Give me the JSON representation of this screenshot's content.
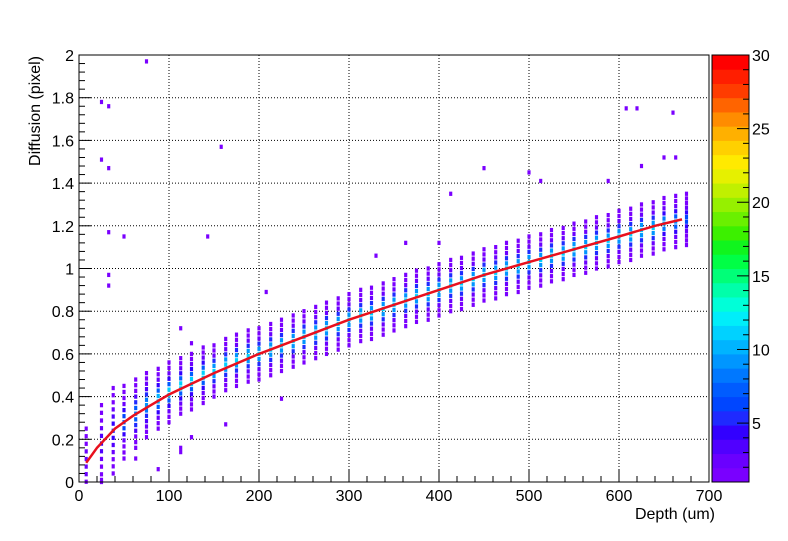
{
  "chart_data": {
    "type": "heatmap",
    "xlabel": "Depth (um)",
    "ylabel": "Diffusion (pixel)",
    "xlim": [
      0,
      700
    ],
    "ylim": [
      0,
      2
    ],
    "x_ticks": [
      "0",
      "100",
      "200",
      "300",
      "400",
      "500",
      "600",
      "700"
    ],
    "y_ticks": [
      "0",
      "0.2",
      "0.4",
      "0.6",
      "0.8",
      "1",
      "1.2",
      "1.4",
      "1.6",
      "1.8",
      "2"
    ],
    "grid": true,
    "colorbar": {
      "min": 1,
      "max": 30,
      "ticks": [
        "5",
        "10",
        "15",
        "20",
        "25",
        "30"
      ],
      "colors": [
        "#7a00ff",
        "#6a00ff",
        "#5000ff",
        "#3200ff",
        "#1f2aff",
        "#0046ff",
        "#005cff",
        "#0078ff",
        "#0096ff",
        "#00b4ff",
        "#00d2ff",
        "#00eefa",
        "#00ffd8",
        "#00ffaa",
        "#00ff78",
        "#00ff46",
        "#10f51e",
        "#3cf000",
        "#6af000",
        "#96f000",
        "#c0f000",
        "#e6f000",
        "#ffea00",
        "#ffd000",
        "#ffb000",
        "#ff8c00",
        "#ff6400",
        "#ff3c00",
        "#ff1e00",
        "#ff0000"
      ]
    },
    "fit_curve": {
      "color": "#e8101e",
      "points": [
        [
          8,
          0.09
        ],
        [
          20,
          0.16
        ],
        [
          40,
          0.25
        ],
        [
          60,
          0.31
        ],
        [
          80,
          0.36
        ],
        [
          100,
          0.41
        ],
        [
          120,
          0.45
        ],
        [
          150,
          0.51
        ],
        [
          200,
          0.6
        ],
        [
          250,
          0.68
        ],
        [
          300,
          0.76
        ],
        [
          350,
          0.83
        ],
        [
          400,
          0.9
        ],
        [
          450,
          0.97
        ],
        [
          500,
          1.03
        ],
        [
          550,
          1.09
        ],
        [
          600,
          1.15
        ],
        [
          640,
          1.2
        ],
        [
          670,
          1.23
        ]
      ]
    },
    "columns": [
      {
        "x": 8,
        "core": 0.09,
        "spread": 0.16,
        "n": 10,
        "peak": 2
      },
      {
        "x": 25,
        "core": 0.18,
        "spread": 0.18,
        "n": 11,
        "peak": 4
      },
      {
        "x": 38,
        "core": 0.24,
        "spread": 0.2,
        "n": 13,
        "peak": 5
      },
      {
        "x": 50,
        "core": 0.28,
        "spread": 0.17,
        "n": 13,
        "peak": 7
      },
      {
        "x": 63,
        "core": 0.32,
        "spread": 0.16,
        "n": 13,
        "peak": 8
      },
      {
        "x": 75,
        "core": 0.36,
        "spread": 0.15,
        "n": 13,
        "peak": 9
      },
      {
        "x": 88,
        "core": 0.39,
        "spread": 0.14,
        "n": 12,
        "peak": 10
      },
      {
        "x": 100,
        "core": 0.42,
        "spread": 0.14,
        "n": 12,
        "peak": 11
      },
      {
        "x": 113,
        "core": 0.45,
        "spread": 0.13,
        "n": 12,
        "peak": 11
      },
      {
        "x": 125,
        "core": 0.47,
        "spread": 0.13,
        "n": 12,
        "peak": 11
      },
      {
        "x": 138,
        "core": 0.5,
        "spread": 0.13,
        "n": 12,
        "peak": 11
      },
      {
        "x": 150,
        "core": 0.52,
        "spread": 0.12,
        "n": 11,
        "peak": 11
      },
      {
        "x": 163,
        "core": 0.55,
        "spread": 0.12,
        "n": 11,
        "peak": 11
      },
      {
        "x": 175,
        "core": 0.57,
        "spread": 0.12,
        "n": 11,
        "peak": 11
      },
      {
        "x": 188,
        "core": 0.59,
        "spread": 0.12,
        "n": 11,
        "peak": 11
      },
      {
        "x": 200,
        "core": 0.6,
        "spread": 0.12,
        "n": 11,
        "peak": 11
      },
      {
        "x": 213,
        "core": 0.62,
        "spread": 0.12,
        "n": 11,
        "peak": 11
      },
      {
        "x": 225,
        "core": 0.64,
        "spread": 0.12,
        "n": 11,
        "peak": 11
      },
      {
        "x": 238,
        "core": 0.66,
        "spread": 0.12,
        "n": 11,
        "peak": 11
      },
      {
        "x": 250,
        "core": 0.68,
        "spread": 0.12,
        "n": 11,
        "peak": 11
      },
      {
        "x": 263,
        "core": 0.7,
        "spread": 0.12,
        "n": 11,
        "peak": 11
      },
      {
        "x": 275,
        "core": 0.72,
        "spread": 0.12,
        "n": 11,
        "peak": 11
      },
      {
        "x": 288,
        "core": 0.74,
        "spread": 0.12,
        "n": 11,
        "peak": 11
      },
      {
        "x": 300,
        "core": 0.76,
        "spread": 0.12,
        "n": 11,
        "peak": 11
      },
      {
        "x": 313,
        "core": 0.78,
        "spread": 0.12,
        "n": 11,
        "peak": 11
      },
      {
        "x": 325,
        "core": 0.79,
        "spread": 0.12,
        "n": 11,
        "peak": 11
      },
      {
        "x": 338,
        "core": 0.81,
        "spread": 0.12,
        "n": 11,
        "peak": 11
      },
      {
        "x": 350,
        "core": 0.83,
        "spread": 0.12,
        "n": 11,
        "peak": 11
      },
      {
        "x": 363,
        "core": 0.85,
        "spread": 0.12,
        "n": 11,
        "peak": 11
      },
      {
        "x": 375,
        "core": 0.87,
        "spread": 0.12,
        "n": 11,
        "peak": 11
      },
      {
        "x": 388,
        "core": 0.88,
        "spread": 0.12,
        "n": 11,
        "peak": 11
      },
      {
        "x": 400,
        "core": 0.9,
        "spread": 0.12,
        "n": 11,
        "peak": 11
      },
      {
        "x": 413,
        "core": 0.92,
        "spread": 0.12,
        "n": 11,
        "peak": 11
      },
      {
        "x": 425,
        "core": 0.93,
        "spread": 0.12,
        "n": 11,
        "peak": 11
      },
      {
        "x": 438,
        "core": 0.95,
        "spread": 0.12,
        "n": 11,
        "peak": 11
      },
      {
        "x": 450,
        "core": 0.97,
        "spread": 0.12,
        "n": 11,
        "peak": 11
      },
      {
        "x": 463,
        "core": 0.98,
        "spread": 0.12,
        "n": 11,
        "peak": 11
      },
      {
        "x": 475,
        "core": 1.0,
        "spread": 0.12,
        "n": 11,
        "peak": 11
      },
      {
        "x": 488,
        "core": 1.01,
        "spread": 0.12,
        "n": 11,
        "peak": 11
      },
      {
        "x": 500,
        "core": 1.03,
        "spread": 0.12,
        "n": 11,
        "peak": 11
      },
      {
        "x": 513,
        "core": 1.04,
        "spread": 0.12,
        "n": 11,
        "peak": 11
      },
      {
        "x": 525,
        "core": 1.06,
        "spread": 0.12,
        "n": 11,
        "peak": 11
      },
      {
        "x": 538,
        "core": 1.07,
        "spread": 0.12,
        "n": 11,
        "peak": 11
      },
      {
        "x": 550,
        "core": 1.09,
        "spread": 0.12,
        "n": 11,
        "peak": 11
      },
      {
        "x": 563,
        "core": 1.1,
        "spread": 0.12,
        "n": 11,
        "peak": 11
      },
      {
        "x": 575,
        "core": 1.12,
        "spread": 0.12,
        "n": 11,
        "peak": 11
      },
      {
        "x": 588,
        "core": 1.13,
        "spread": 0.12,
        "n": 11,
        "peak": 11
      },
      {
        "x": 600,
        "core": 1.15,
        "spread": 0.12,
        "n": 11,
        "peak": 11
      },
      {
        "x": 613,
        "core": 1.16,
        "spread": 0.12,
        "n": 11,
        "peak": 11
      },
      {
        "x": 625,
        "core": 1.18,
        "spread": 0.12,
        "n": 11,
        "peak": 11
      },
      {
        "x": 638,
        "core": 1.19,
        "spread": 0.12,
        "n": 11,
        "peak": 11
      },
      {
        "x": 650,
        "core": 1.21,
        "spread": 0.12,
        "n": 11,
        "peak": 10
      },
      {
        "x": 663,
        "core": 1.22,
        "spread": 0.12,
        "n": 11,
        "peak": 9
      },
      {
        "x": 675,
        "core": 1.23,
        "spread": 0.12,
        "n": 12,
        "peak": 6
      }
    ],
    "outliers": [
      [
        75,
        1.97
      ],
      [
        25,
        1.78
      ],
      [
        33,
        1.76
      ],
      [
        158,
        1.57
      ],
      [
        25,
        1.51
      ],
      [
        33,
        1.47
      ],
      [
        33,
        1.17
      ],
      [
        50,
        1.15
      ],
      [
        143,
        1.15
      ],
      [
        33,
        0.97
      ],
      [
        33,
        0.92
      ],
      [
        113,
        0.72
      ],
      [
        125,
        0.65
      ],
      [
        225,
        0.39
      ],
      [
        163,
        0.27
      ],
      [
        125,
        0.21
      ],
      [
        113,
        0.14
      ],
      [
        63,
        0.11
      ],
      [
        88,
        0.06
      ],
      [
        25,
        0.01
      ],
      [
        113,
        0.16
      ],
      [
        413,
        1.35
      ],
      [
        450,
        1.47
      ],
      [
        500,
        1.45
      ],
      [
        513,
        1.41
      ],
      [
        588,
        1.41
      ],
      [
        625,
        1.48
      ],
      [
        650,
        1.52
      ],
      [
        663,
        1.52
      ],
      [
        608,
        1.75
      ],
      [
        620,
        1.75
      ],
      [
        660,
        1.73
      ],
      [
        330,
        1.06
      ],
      [
        400,
        1.12
      ],
      [
        363,
        1.12
      ],
      [
        208,
        0.89
      ]
    ]
  }
}
